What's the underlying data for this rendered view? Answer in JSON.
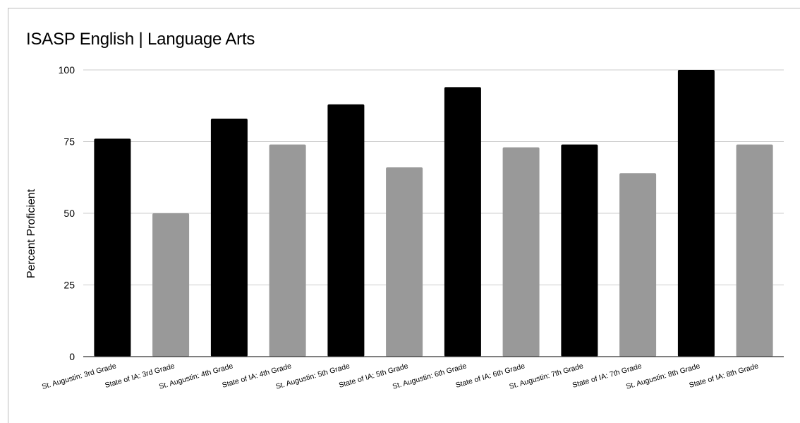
{
  "chart_data": {
    "type": "bar",
    "title": "ISASP English | Language Arts",
    "xlabel": "",
    "ylabel": "Percent Proficient",
    "ylim": [
      0,
      100
    ],
    "yticks": [
      0,
      25,
      50,
      75,
      100
    ],
    "grid": true,
    "legend": "none",
    "categories": [
      "St. Augustin: 3rd Grade",
      "State of IA: 3rd Grade",
      "St. Augustin: 4th Grade",
      "State of IA: 4th Grade",
      "St. Augustin: 5th Grade",
      "State of IA: 5th Grade",
      "St. Augustin: 6th Grade",
      "State of IA: 6th Grade",
      "St. Augustin: 7th Grade",
      "State of IA: 7th Grade",
      "St. Augustin: 8th Grade",
      "State of IA: 8th Grade"
    ],
    "values": [
      76,
      50,
      83,
      74,
      88,
      66,
      94,
      73,
      74,
      64,
      100,
      74
    ],
    "bar_colors": [
      "#000000",
      "#999999",
      "#000000",
      "#999999",
      "#000000",
      "#999999",
      "#000000",
      "#999999",
      "#000000",
      "#999999",
      "#000000",
      "#999999"
    ],
    "colors": {
      "grid": "#cccccc",
      "axis": "#333333",
      "text": "#000000"
    }
  }
}
